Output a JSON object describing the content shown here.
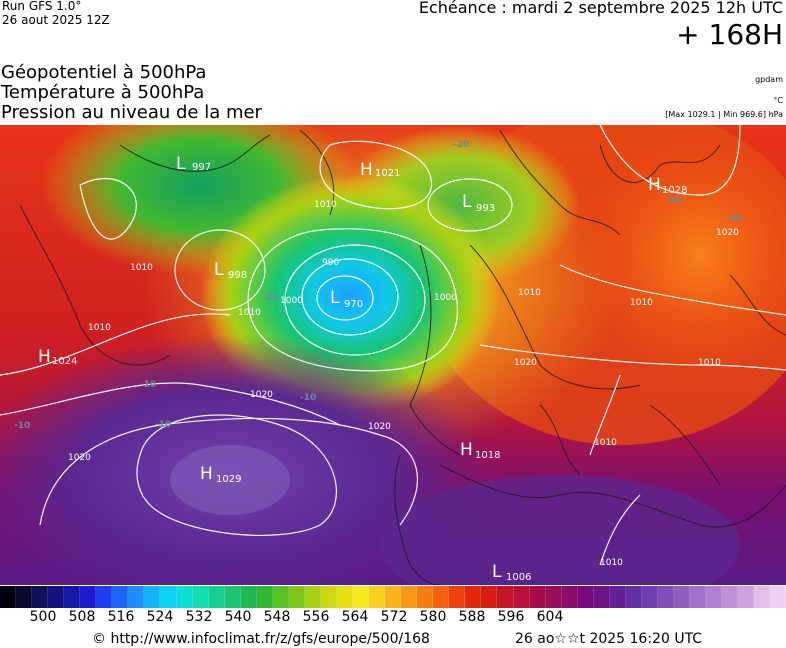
{
  "header": {
    "run_line1": "Run GFS 1.0°",
    "run_line2": "26 aout 2025 12Z",
    "echeance": "Echéance : mardi 2 septembre 2025 12h UTC",
    "horizon": "+ 168H"
  },
  "titles": {
    "line1": "Géopotentiel à 500hPa",
    "line2": "Température à 500hPa",
    "line3": "Pression au niveau de la mer"
  },
  "units": {
    "geopotential": "gpdam",
    "temperature": "°C",
    "pressure_range": "[Max 1029.1 | Min 969.6] hPa"
  },
  "map": {
    "pressure_centers": [
      {
        "type": "L",
        "value": "997"
      },
      {
        "type": "H",
        "value": "1021"
      },
      {
        "type": "L",
        "value": "993"
      },
      {
        "type": "H",
        "value": "1028"
      },
      {
        "type": "L",
        "value": "998"
      },
      {
        "type": "L",
        "value": "970"
      },
      {
        "type": "H",
        "value": "1024"
      },
      {
        "type": "H",
        "value": "1018"
      },
      {
        "type": "H",
        "value": "1029"
      },
      {
        "type": "L",
        "value": "1006"
      }
    ],
    "isobar_labels": [
      "1010",
      "1010",
      "990",
      "1000",
      "1000",
      "1010",
      "1010",
      "1020",
      "1020",
      "1020",
      "1010",
      "1010",
      "1020",
      "1020",
      "1010",
      "1010",
      "1010"
    ],
    "temperature_labels": [
      "-20",
      "-20",
      "-20",
      "-20",
      "-10",
      "-10",
      "-10",
      "-10"
    ]
  },
  "colorbar": {
    "colors": [
      "#000010",
      "#0a0a30",
      "#10105a",
      "#141480",
      "#1818a8",
      "#1c1cd0",
      "#1e3cf0",
      "#1e64f8",
      "#1e8cfc",
      "#14b4f8",
      "#0ad2f0",
      "#0ae0d0",
      "#10dcb0",
      "#14d090",
      "#18c470",
      "#1cb850",
      "#30b830",
      "#58c020",
      "#80c818",
      "#a8d014",
      "#ccd810",
      "#e8e010",
      "#f8e820",
      "#f8d020",
      "#f8b418",
      "#f89818",
      "#f87c14",
      "#f86010",
      "#f04010",
      "#e42810",
      "#d81c18",
      "#c81428",
      "#b81038",
      "#a80c48",
      "#980c58",
      "#880c68",
      "#780c78",
      "#6c1488",
      "#642098",
      "#6430a8",
      "#7040b0",
      "#8050b8",
      "#9060c0",
      "#a070c8",
      "#b080d0",
      "#c090d8",
      "#d0a0e0",
      "#e0c0e8",
      "#f0d0f0"
    ],
    "tick_labels": [
      "500",
      "508",
      "516",
      "524",
      "532",
      "540",
      "548",
      "556",
      "564",
      "572",
      "580",
      "588",
      "596",
      "604"
    ]
  },
  "footer": {
    "credit": "© http://www.infoclimat.fr/z/gfs/europe/500/168",
    "timestamp": "26 ao☆☆t 2025 16:20 UTC"
  }
}
